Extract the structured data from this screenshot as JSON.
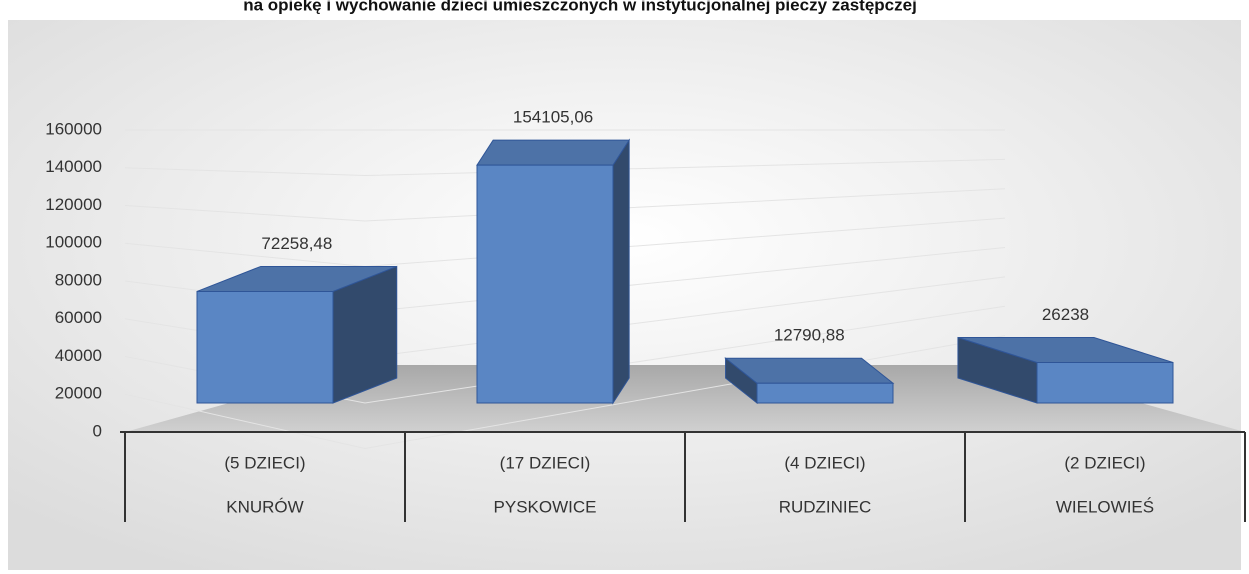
{
  "chart_data": {
    "type": "bar3d",
    "title": "na opiekę i wychowanie dzieci umieszczonych w instytucjonalnej pieczy zastępczej",
    "categories": [
      "KNURÓW",
      "PYSKOWICE",
      "RUDZINIEC",
      "WIELOWIEŚ"
    ],
    "subcategories": [
      "(5 DZIECI)",
      "(17 DZIECI)",
      "(4 DZIECI)",
      "(2 DZIECI)"
    ],
    "values": [
      72258.48,
      154105.06,
      12790.88,
      26238
    ],
    "value_labels": [
      "72258,48",
      "154105,06",
      "12790,88",
      "26238"
    ],
    "color": "#5a86c4",
    "ylim": [
      0,
      160000
    ],
    "yticks": [
      0,
      20000,
      40000,
      60000,
      80000,
      100000,
      120000,
      140000,
      160000
    ],
    "grid": true
  }
}
